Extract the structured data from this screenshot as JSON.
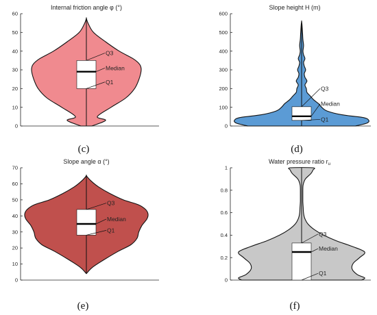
{
  "chart_data": [
    {
      "type": "violin",
      "panel_label": "(c)",
      "title": "Internal friction angle φ (°)",
      "ylim": [
        0,
        60
      ],
      "yticks": [
        0,
        10,
        20,
        30,
        40,
        50,
        60
      ],
      "ytick_labels": [
        "0",
        "10",
        "20",
        "30",
        "40",
        "50",
        "60"
      ],
      "fill_color": "#f08a8f",
      "density_profile": [
        [
          0,
          0.1
        ],
        [
          3,
          0.35
        ],
        [
          5,
          0.2
        ],
        [
          10,
          0.45
        ],
        [
          15,
          0.72
        ],
        [
          20,
          0.88
        ],
        [
          25,
          0.96
        ],
        [
          30,
          1.0
        ],
        [
          33,
          0.97
        ],
        [
          36,
          0.85
        ],
        [
          40,
          0.6
        ],
        [
          45,
          0.35
        ],
        [
          50,
          0.13
        ],
        [
          55,
          0.03
        ],
        [
          57.5,
          0.0
        ]
      ],
      "box": {
        "q1": 20,
        "median": 29,
        "q3": 35,
        "min": 0,
        "max": 57.5
      },
      "annotations": [
        {
          "text": "Q3",
          "target": "q3",
          "value": 39
        },
        {
          "text": "Median",
          "target": "median",
          "value": 31
        },
        {
          "text": "Q1",
          "target": "q1",
          "value": 23.5
        }
      ]
    },
    {
      "type": "violin",
      "panel_label": "(d)",
      "title": "Slope height H (m)",
      "ylim": [
        0,
        600
      ],
      "yticks": [
        0,
        100,
        200,
        300,
        400,
        500,
        600
      ],
      "ytick_labels": [
        "0",
        "100",
        "200",
        "300",
        "400",
        "500",
        "600"
      ],
      "fill_color": "#5b9bd5",
      "density_profile": [
        [
          0,
          0.8
        ],
        [
          15,
          0.97
        ],
        [
          30,
          1.0
        ],
        [
          45,
          0.92
        ],
        [
          60,
          0.6
        ],
        [
          80,
          0.38
        ],
        [
          100,
          0.3
        ],
        [
          120,
          0.25
        ],
        [
          140,
          0.18
        ],
        [
          160,
          0.13
        ],
        [
          180,
          0.08
        ],
        [
          200,
          0.07
        ],
        [
          220,
          0.05
        ],
        [
          240,
          0.08
        ],
        [
          260,
          0.05
        ],
        [
          280,
          0.04
        ],
        [
          300,
          0.06
        ],
        [
          320,
          0.04
        ],
        [
          340,
          0.03
        ],
        [
          360,
          0.05
        ],
        [
          380,
          0.03
        ],
        [
          400,
          0.02
        ],
        [
          430,
          0.03
        ],
        [
          460,
          0.02
        ],
        [
          490,
          0.015
        ],
        [
          520,
          0.01
        ],
        [
          545,
          0.005
        ],
        [
          560,
          0.0
        ]
      ],
      "box": {
        "q1": 30,
        "median": 52,
        "q3": 103,
        "min": 0,
        "max": 560
      },
      "annotations": [
        {
          "text": "Q3",
          "target": "q3",
          "value": 200
        },
        {
          "text": "Median",
          "target": "median",
          "value": 118
        },
        {
          "text": "Q1",
          "target": "q1",
          "value": 35
        }
      ]
    },
    {
      "type": "violin",
      "panel_label": "(e)",
      "title": "Slope angle α (°)",
      "ylim": [
        0,
        70
      ],
      "yticks": [
        0,
        10,
        20,
        30,
        40,
        50,
        60,
        70
      ],
      "ytick_labels": [
        "0",
        "10",
        "20",
        "30",
        "40",
        "50",
        "60",
        "70"
      ],
      "fill_color": "#c0504d",
      "density_profile": [
        [
          4,
          0.0
        ],
        [
          8,
          0.1
        ],
        [
          13,
          0.3
        ],
        [
          18,
          0.52
        ],
        [
          22,
          0.72
        ],
        [
          26,
          0.82
        ],
        [
          30,
          0.85
        ],
        [
          34,
          0.9
        ],
        [
          38,
          0.98
        ],
        [
          41,
          1.0
        ],
        [
          44,
          0.96
        ],
        [
          47,
          0.84
        ],
        [
          50,
          0.6
        ],
        [
          54,
          0.38
        ],
        [
          58,
          0.2
        ],
        [
          62,
          0.07
        ],
        [
          65,
          0.0
        ]
      ],
      "box": {
        "q1": 28,
        "median": 35,
        "q3": 44,
        "min": 4,
        "max": 65
      },
      "annotations": [
        {
          "text": "Q3",
          "target": "q3",
          "value": 48
        },
        {
          "text": "Median",
          "target": "median",
          "value": 38
        },
        {
          "text": "Q1",
          "target": "q1",
          "value": 31
        }
      ]
    },
    {
      "type": "violin",
      "panel_label": "(f)",
      "title": "Water pressure ratio r",
      "title_subscript": "u",
      "ylim": [
        0,
        1
      ],
      "yticks": [
        0,
        0.2,
        0.4,
        0.6,
        0.8,
        1
      ],
      "ytick_labels": [
        "0",
        "0.2",
        "0.4",
        "0.6",
        "0.8",
        "1"
      ],
      "fill_color": "#c8c8c8",
      "density_profile": [
        [
          0,
          0.95
        ],
        [
          0.02,
          1.0
        ],
        [
          0.05,
          0.88
        ],
        [
          0.1,
          0.8
        ],
        [
          0.15,
          0.82
        ],
        [
          0.2,
          0.92
        ],
        [
          0.25,
          1.0
        ],
        [
          0.3,
          0.8
        ],
        [
          0.35,
          0.55
        ],
        [
          0.4,
          0.35
        ],
        [
          0.45,
          0.2
        ],
        [
          0.5,
          0.1
        ],
        [
          0.55,
          0.05
        ],
        [
          0.6,
          0.03
        ],
        [
          0.65,
          0.025
        ],
        [
          0.7,
          0.02
        ],
        [
          0.75,
          0.02
        ],
        [
          0.8,
          0.02
        ],
        [
          0.85,
          0.025
        ],
        [
          0.9,
          0.06
        ],
        [
          0.95,
          0.15
        ],
        [
          0.98,
          0.18
        ],
        [
          1.0,
          0.18
        ]
      ],
      "box": {
        "q1": 0,
        "median": 0.25,
        "q3": 0.33,
        "min": 0,
        "max": 1
      },
      "annotations": [
        {
          "text": "Q3",
          "target": "q3",
          "value": 0.41
        },
        {
          "text": "Median",
          "target": "median",
          "value": 0.28
        },
        {
          "text": "Q1",
          "target": "q1",
          "value": 0.06
        }
      ]
    }
  ]
}
